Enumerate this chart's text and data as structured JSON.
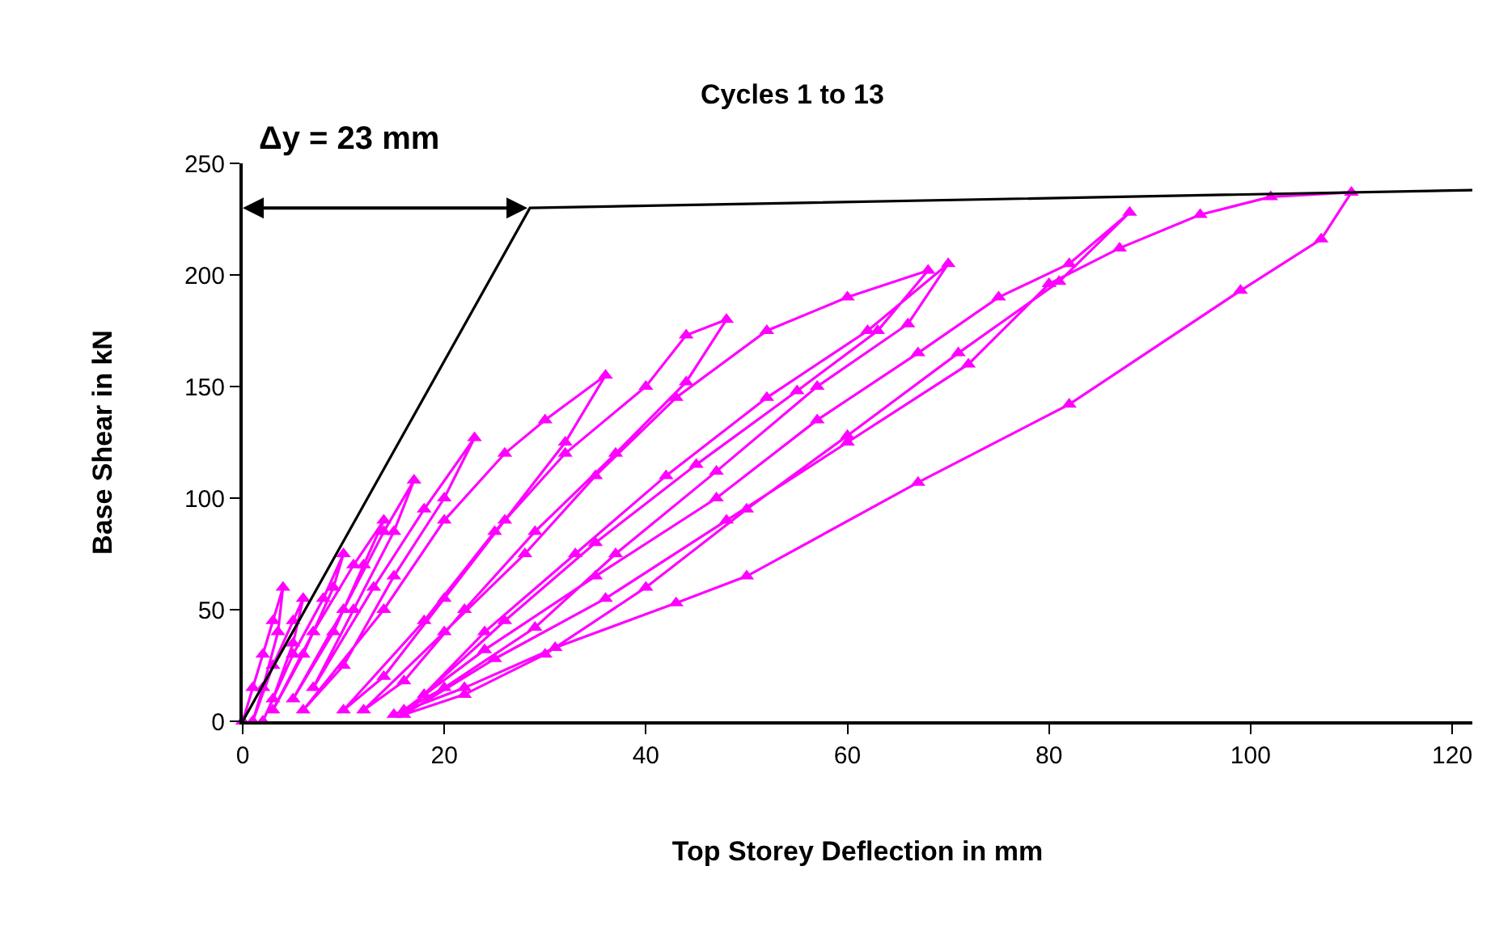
{
  "chart_data": {
    "type": "line",
    "title": "Cycles 1 to 13",
    "xlabel": "Top Storey Deflection in mm",
    "ylabel": "Base Shear in kN",
    "annotations": [
      "Δy = 23 mm"
    ],
    "xlim": [
      0,
      122
    ],
    "ylim": [
      0,
      250
    ],
    "xticks": [
      0,
      20,
      40,
      60,
      80,
      100,
      120
    ],
    "yticks": [
      0,
      50,
      100,
      150,
      200,
      250
    ],
    "grid": false,
    "marker": "triangle",
    "line_style": "solid",
    "series": [
      {
        "color": "#ff00ff",
        "x": [
          0,
          1,
          2,
          3,
          4,
          3.5,
          2,
          1,
          3,
          5,
          6,
          5,
          3,
          2,
          5,
          8,
          10,
          9,
          6,
          3,
          7,
          11,
          14,
          12,
          9,
          5,
          10,
          14,
          17,
          15,
          11,
          7,
          13,
          18,
          23,
          20,
          15,
          10,
          6,
          14,
          20,
          26,
          30,
          36,
          32,
          26,
          20,
          14,
          10,
          18,
          25,
          32,
          40,
          44,
          48,
          44,
          37,
          29,
          22,
          16,
          12,
          20,
          28,
          35,
          43,
          52,
          60,
          68,
          63,
          55,
          45,
          35,
          26,
          18,
          24,
          33,
          42,
          52,
          62,
          70,
          66,
          57,
          47,
          37,
          29,
          20,
          16,
          24,
          35,
          47,
          57,
          67,
          75,
          82,
          88,
          81,
          71,
          60,
          50,
          40,
          30,
          22,
          16,
          25,
          36,
          48,
          60,
          72,
          80,
          87,
          95,
          102,
          110,
          107,
          99,
          82,
          67,
          50,
          43,
          31,
          22,
          15
        ],
        "values": [
          0,
          15,
          30,
          45,
          60,
          40,
          15,
          0,
          25,
          45,
          55,
          35,
          10,
          0,
          30,
          55,
          75,
          60,
          30,
          5,
          40,
          70,
          90,
          70,
          40,
          10,
          50,
          85,
          108,
          85,
          50,
          15,
          60,
          95,
          127,
          100,
          65,
          25,
          5,
          50,
          90,
          120,
          135,
          155,
          125,
          90,
          55,
          20,
          5,
          45,
          85,
          120,
          150,
          173,
          180,
          152,
          120,
          85,
          50,
          18,
          5,
          40,
          75,
          110,
          145,
          175,
          190,
          202,
          175,
          148,
          115,
          80,
          45,
          12,
          40,
          75,
          110,
          145,
          175,
          205,
          178,
          150,
          112,
          75,
          42,
          15,
          5,
          32,
          65,
          100,
          135,
          165,
          190,
          205,
          228,
          197,
          165,
          128,
          95,
          60,
          30,
          12,
          3,
          28,
          55,
          90,
          125,
          160,
          196,
          212,
          227,
          235,
          237,
          216,
          193,
          142,
          107,
          65,
          53,
          33,
          15,
          3
        ]
      },
      {
        "color": "#000000",
        "marker": "none",
        "x": [
          0,
          28.5,
          122
        ],
        "values": [
          0,
          230,
          238
        ]
      }
    ]
  }
}
